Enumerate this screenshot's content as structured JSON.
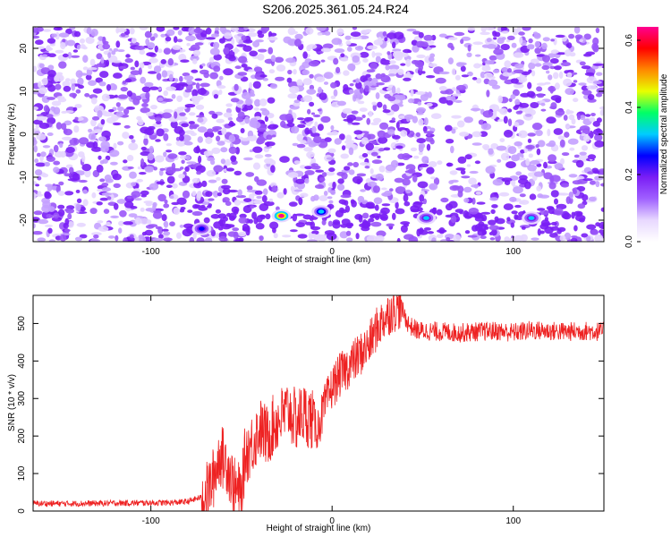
{
  "title": "S206.2025.361.05.24.R24",
  "chart_data": [
    {
      "type": "heatmap",
      "name": "spectrogram",
      "xlabel": "Height of straight line (km)",
      "ylabel": "Frequency (Hz)",
      "xlim": [
        -165,
        150
      ],
      "ylim": [
        -25,
        25
      ],
      "xticks": [
        -100,
        0,
        100
      ],
      "yticks": [
        -20,
        -10,
        0,
        10,
        20
      ],
      "colorbar": {
        "label": "Normalized spectral amplitude",
        "range": [
          0,
          0.64
        ],
        "ticks": [
          "0.0",
          "0.2",
          "0.4",
          "0.6"
        ],
        "colors": [
          "#ffffff",
          "#e8d8ff",
          "#a060ff",
          "#7a1ef5",
          "#0000ff",
          "#00ccff",
          "#00ff66",
          "#e8ff00",
          "#ff8800",
          "#ff0000",
          "#ff0090"
        ]
      },
      "features": [
        {
          "note": "strong band",
          "x_range": [
            -80,
            150
          ],
          "freq_range": [
            -23,
            -16
          ]
        },
        {
          "note": "peak",
          "x": -28,
          "freq": -19,
          "amplitude": 0.64
        },
        {
          "note": "peak",
          "x": -72,
          "freq": -22,
          "amplitude": 0.25
        },
        {
          "note": "peak",
          "x": -6,
          "freq": -18,
          "amplitude": 0.32
        },
        {
          "note": "peak",
          "x": 52,
          "freq": -19.5,
          "amplitude": 0.3
        },
        {
          "note": "peak",
          "x": 110,
          "freq": -19.5,
          "amplitude": 0.3
        },
        {
          "note": "gap",
          "x": -28,
          "freq_range": [
            -12,
            25
          ]
        },
        {
          "note": "gap",
          "x": 60,
          "freq_range": [
            -16,
            25
          ]
        }
      ]
    },
    {
      "type": "line",
      "name": "snr",
      "xlabel": "Height of straight line (km)",
      "ylabel": "SNR (10 * v/v)",
      "xlim": [
        -165,
        150
      ],
      "ylim": [
        0,
        575
      ],
      "xticks": [
        -100,
        0,
        100
      ],
      "yticks": [
        0,
        100,
        200,
        300,
        400,
        500
      ],
      "color": "#ee2222",
      "series": [
        {
          "x": [
            -165,
            -140,
            -120,
            -100,
            -90,
            -80,
            -70,
            -66,
            -62,
            -58,
            -54,
            -50,
            -48,
            -44,
            -40,
            -36,
            -32,
            -28,
            -24,
            -20,
            -16,
            -12,
            -8,
            -4,
            0,
            4,
            8,
            12,
            16,
            20,
            24,
            28,
            32,
            36,
            38,
            40,
            42,
            44,
            48,
            52,
            60,
            70,
            80,
            90,
            100,
            110,
            120,
            130,
            140,
            150
          ],
          "y": [
            20,
            20,
            21,
            22,
            22,
            25,
            40,
            80,
            150,
            130,
            60,
            40,
            150,
            180,
            220,
            200,
            230,
            250,
            270,
            240,
            260,
            250,
            220,
            280,
            330,
            360,
            380,
            400,
            420,
            440,
            480,
            510,
            530,
            540,
            545,
            520,
            500,
            490,
            480,
            480,
            478,
            475,
            478,
            480,
            476,
            482,
            480,
            478,
            480,
            478
          ]
        }
      ]
    }
  ]
}
